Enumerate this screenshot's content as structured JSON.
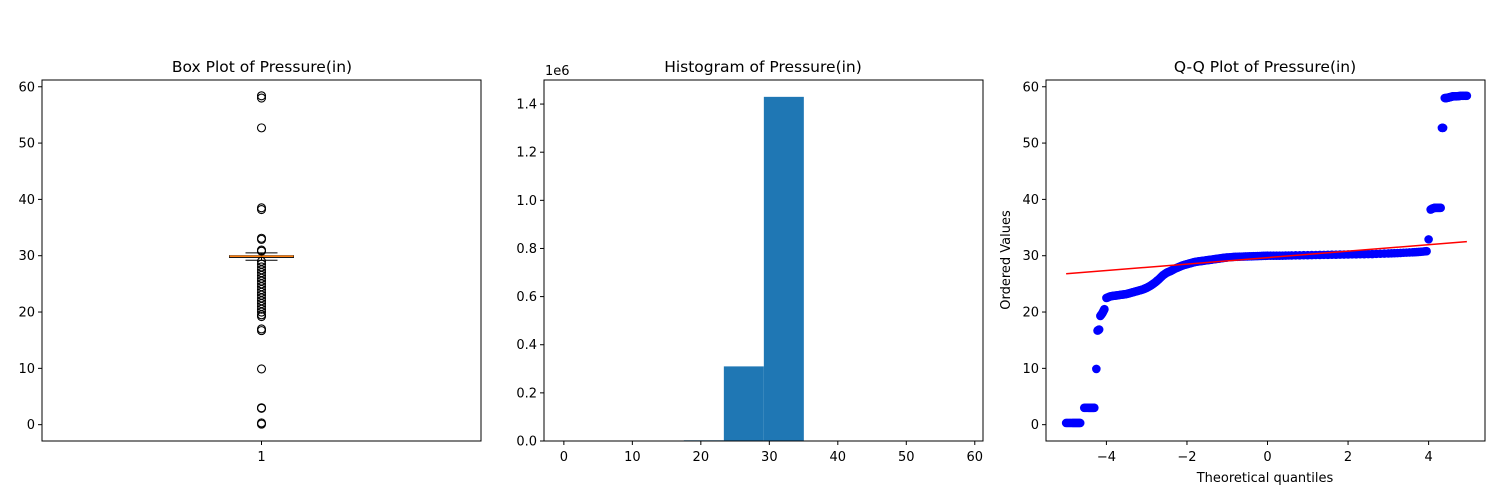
{
  "chart_data": [
    {
      "type": "box",
      "title": "Box Plot of Pressure(in)",
      "xlabel": "",
      "ylabel": "",
      "categories": [
        "1"
      ],
      "ylim": [
        -2.9,
        61.2
      ],
      "yticks": [
        0,
        10,
        20,
        30,
        40,
        50,
        60
      ],
      "box": {
        "q1": 29.7,
        "median": 29.9,
        "q3": 30.0,
        "whisker_low": 29.2,
        "whisker_high": 30.5
      },
      "outliers": [
        0.1,
        0.3,
        2.9,
        3.0,
        9.9,
        16.7,
        17.0,
        19.2,
        19.5,
        20.0,
        20.5,
        21.0,
        21.5,
        22.0,
        22.5,
        23.0,
        23.5,
        24.0,
        24.5,
        25.0,
        25.5,
        26.0,
        26.5,
        27.0,
        27.5,
        28.0,
        28.5,
        29.0,
        30.8,
        31.0,
        32.9,
        33.1,
        38.2,
        38.5,
        52.7,
        58.0,
        58.4
      ]
    },
    {
      "type": "histogram",
      "title": "Histogram of Pressure(in)",
      "xlabel": "",
      "ylabel": "",
      "y_offset_label": "1e6",
      "xlim": [
        -2.9,
        61.2
      ],
      "ylim": [
        0,
        1.5
      ],
      "xticks": [
        0,
        10,
        20,
        30,
        40,
        50,
        60
      ],
      "yticks": [
        "0.0",
        "0.2",
        "0.4",
        "0.6",
        "0.8",
        "1.0",
        "1.2",
        "1.4"
      ],
      "bin_edges": [
        0,
        5.84,
        11.68,
        17.52,
        23.36,
        29.2,
        35.04,
        40.88,
        46.72,
        52.56,
        58.4
      ],
      "counts": [
        0.0001,
        1e-05,
        0.0001,
        0.003,
        0.31,
        1.43,
        0.0002,
        0.0,
        1e-05,
        5e-05
      ],
      "color": "#1f77b4"
    },
    {
      "type": "scatter",
      "title": "Q-Q Plot of Pressure(in)",
      "xlabel": "Theoretical quantiles",
      "ylabel": "Ordered Values",
      "xlim": [
        -5.5,
        5.4
      ],
      "ylim": [
        -2.9,
        61.2
      ],
      "xticks": [
        -4,
        -2,
        0,
        2,
        4
      ],
      "yticks": [
        0,
        10,
        20,
        30,
        40,
        50,
        60
      ],
      "point_color": "#0000ff",
      "fit_line_color": "#ff0000",
      "fit_line": {
        "x": [
          -5.0,
          4.95
        ],
        "y": [
          26.8,
          32.5
        ]
      },
      "points": {
        "x": [
          -5.0,
          -4.85,
          -4.75,
          -4.65,
          -4.55,
          -4.45,
          -4.4,
          -4.35,
          -4.3,
          -4.25,
          -4.22,
          -4.18,
          -4.15,
          -4.1,
          -4.05,
          -4.0,
          -3.9,
          -3.8,
          -3.7,
          -3.6,
          -3.5,
          -3.4,
          -3.3,
          -3.2,
          -3.1,
          -3.0,
          -2.9,
          -2.8,
          -2.7,
          -2.6,
          -2.5,
          -2.4,
          -2.3,
          -2.2,
          -2.1,
          -2.0,
          -1.9,
          -1.8,
          -1.7,
          -1.6,
          -1.5,
          -1.4,
          -1.3,
          -1.2,
          -1.1,
          -1.0,
          -0.8,
          -0.6,
          -0.4,
          -0.2,
          0.0,
          0.3,
          0.6,
          1.0,
          1.4,
          1.8,
          2.2,
          2.6,
          3.0,
          3.3,
          3.6,
          3.8,
          3.95,
          4.0,
          4.05,
          4.1,
          4.15,
          4.2,
          4.25,
          4.3,
          4.33,
          4.36,
          4.4,
          4.45,
          4.5,
          4.55,
          4.6,
          4.7,
          4.8,
          4.95
        ],
        "y": [
          0.3,
          0.3,
          0.3,
          0.3,
          3.0,
          3.0,
          3.0,
          3.0,
          3.0,
          9.9,
          16.7,
          16.9,
          19.3,
          19.8,
          20.5,
          22.5,
          22.8,
          22.9,
          23.0,
          23.1,
          23.2,
          23.4,
          23.6,
          23.8,
          24.0,
          24.3,
          24.7,
          25.2,
          25.8,
          26.5,
          27.0,
          27.3,
          27.7,
          28.0,
          28.3,
          28.5,
          28.7,
          28.9,
          29.0,
          29.1,
          29.2,
          29.3,
          29.4,
          29.5,
          29.6,
          29.7,
          29.8,
          29.85,
          29.9,
          29.95,
          30.0,
          30.0,
          30.05,
          30.1,
          30.15,
          30.2,
          30.25,
          30.3,
          30.4,
          30.5,
          30.6,
          30.7,
          30.8,
          32.9,
          38.2,
          38.4,
          38.5,
          38.5,
          38.5,
          38.5,
          52.7,
          52.7,
          58.0,
          58.0,
          58.1,
          58.2,
          58.3,
          58.3,
          58.4,
          58.4
        ]
      }
    }
  ]
}
